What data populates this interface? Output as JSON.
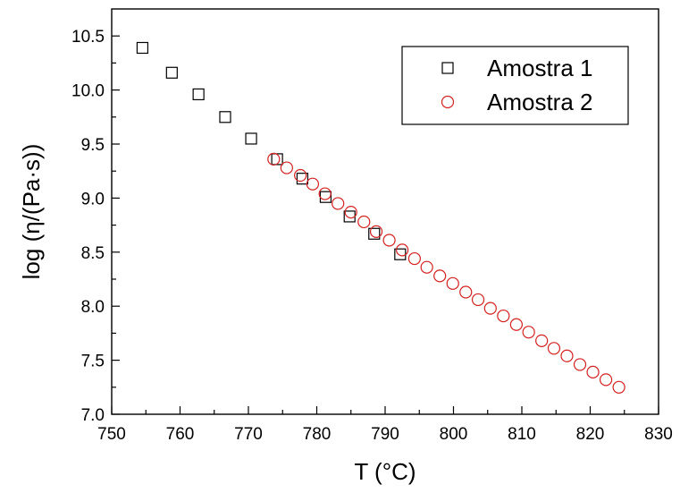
{
  "chart_data": {
    "type": "scatter",
    "title": "",
    "xlabel": "T (°C)",
    "ylabel": "log (η/(Pa·s))",
    "xlim": [
      750,
      830
    ],
    "ylim": [
      7.0,
      10.75
    ],
    "x_ticks": [
      750,
      760,
      770,
      780,
      790,
      800,
      810,
      820,
      830
    ],
    "y_ticks": [
      7.0,
      7.5,
      8.0,
      8.5,
      9.0,
      9.5,
      10.0,
      10.5
    ],
    "x_tick_labels": [
      "750",
      "760",
      "770",
      "780",
      "790",
      "800",
      "810",
      "820",
      "830"
    ],
    "y_tick_labels": [
      "7.0",
      "7.5",
      "8.0",
      "8.5",
      "9.0",
      "9.5",
      "10.0",
      "10.5"
    ],
    "grid": false,
    "legend_position": "top-right",
    "series": [
      {
        "name": "Amostra 1",
        "marker": "square",
        "color": "#000000",
        "points": [
          [
            754.5,
            10.39
          ],
          [
            758.8,
            10.16
          ],
          [
            762.7,
            9.96
          ],
          [
            766.6,
            9.75
          ],
          [
            770.4,
            9.55
          ],
          [
            774.2,
            9.36
          ],
          [
            777.9,
            9.18
          ],
          [
            781.3,
            9.01
          ],
          [
            784.8,
            8.83
          ],
          [
            788.4,
            8.67
          ],
          [
            792.2,
            8.48
          ]
        ]
      },
      {
        "name": "Amostra 2",
        "marker": "circle",
        "color": "#d42020",
        "points": [
          [
            773.7,
            9.36
          ],
          [
            775.6,
            9.28
          ],
          [
            777.6,
            9.21
          ],
          [
            779.4,
            9.13
          ],
          [
            781.2,
            9.04
          ],
          [
            783.1,
            8.95
          ],
          [
            785.0,
            8.87
          ],
          [
            786.9,
            8.78
          ],
          [
            788.7,
            8.69
          ],
          [
            790.6,
            8.61
          ],
          [
            792.5,
            8.52
          ],
          [
            794.3,
            8.44
          ],
          [
            796.1,
            8.36
          ],
          [
            798.0,
            8.28
          ],
          [
            799.9,
            8.21
          ],
          [
            801.8,
            8.13
          ],
          [
            803.6,
            8.06
          ],
          [
            805.4,
            7.98
          ],
          [
            807.3,
            7.91
          ],
          [
            809.2,
            7.83
          ],
          [
            811.0,
            7.76
          ],
          [
            812.9,
            7.68
          ],
          [
            814.7,
            7.61
          ],
          [
            816.6,
            7.54
          ],
          [
            818.5,
            7.46
          ],
          [
            820.4,
            7.39
          ],
          [
            822.3,
            7.32
          ],
          [
            824.2,
            7.25
          ]
        ]
      }
    ]
  }
}
